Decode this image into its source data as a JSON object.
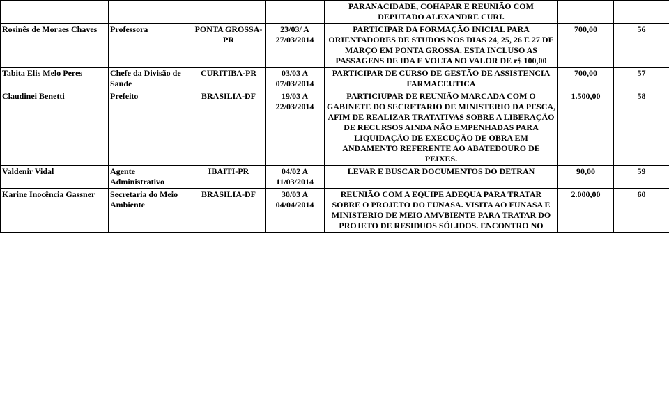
{
  "rows": [
    {
      "c0": "",
      "c1": "",
      "c2": "",
      "c3": "",
      "c4": "PARANACIDADE, COHAPAR E REUNIÃO COM DEPUTADO ALEXANDRE CURI.",
      "c5": "",
      "c6": ""
    },
    {
      "c0": "Rosinês de Moraes Chaves",
      "c1": "Professora",
      "c2": "PONTA GROSSA-PR",
      "c3": "23/03/ A 27/03/2014",
      "c4": "PARTICIPAR DA FORMAÇÃO INICIAL PARA ORIENTADORES DE STUDOS NOS DIAS 24, 25, 26 E 27 DE MARÇO EM PONTA GROSSA. ESTA INCLUSO AS PASSAGENS DE IDA E VOLTA NO VALOR DE r$ 100,00",
      "c5": "700,00",
      "c6": "56"
    },
    {
      "c0": "Tabita Elis Melo Peres",
      "c1": "Chefe da Divisão de Saúde",
      "c2": "CURITIBA-PR",
      "c3": "03/03 A 07/03/2014",
      "c4": "PARTICIPAR DE CURSO DE GESTÃO DE ASSISTENCIA FARMACEUTICA",
      "c5": "700,00",
      "c6": "57"
    },
    {
      "c0": "Claudinei Benetti",
      "c1": "Prefeito",
      "c2": "BRASILIA-DF",
      "c3": "19/03 A 22/03/2014",
      "c4": "PARTICIUPAR DE REUNIÃO MARCADA COM O GABINETE DO SECRETARIO DE MINISTERIO DA PESCA, AFIM DE REALIZAR TRATATIVAS SOBRE A LIBERAÇÃO DE RECURSOS AINDA NÃO EMPENHADAS PARA LIQUIDAÇÃO DE EXECUÇÃO DE OBRA EM ANDAMENTO REFERENTE AO ABATEDOURO DE PEIXES.",
      "c5": "1.500,00",
      "c6": "58"
    },
    {
      "c0": "Valdenir Vidal",
      "c1": "Agente Administrativo",
      "c2": "IBAITI-PR",
      "c3": "04/02 A 11/03/2014",
      "c4": "LEVAR E BUSCAR DOCUMENTOS DO DETRAN",
      "c5": "90,00",
      "c6": "59"
    },
    {
      "c0": "Karine Inocência Gassner",
      "c1": "Secretaria do Meio Ambiente",
      "c2": "BRASILIA-DF",
      "c3": "30/03 A 04/04/2014",
      "c4": "REUNIÃO COM A EQUIPE ADEQUA PARA TRATAR SOBRE O PROJETO DO FUNASA. VISITA AO FUNASA E MINISTERIO DE MEIO AMVBIENTE PARA TRATAR DO PROJETO DE RESIDUOS SÓLIDOS. ENCONTRO NO",
      "c5": "2.000,00",
      "c6": "60"
    }
  ]
}
